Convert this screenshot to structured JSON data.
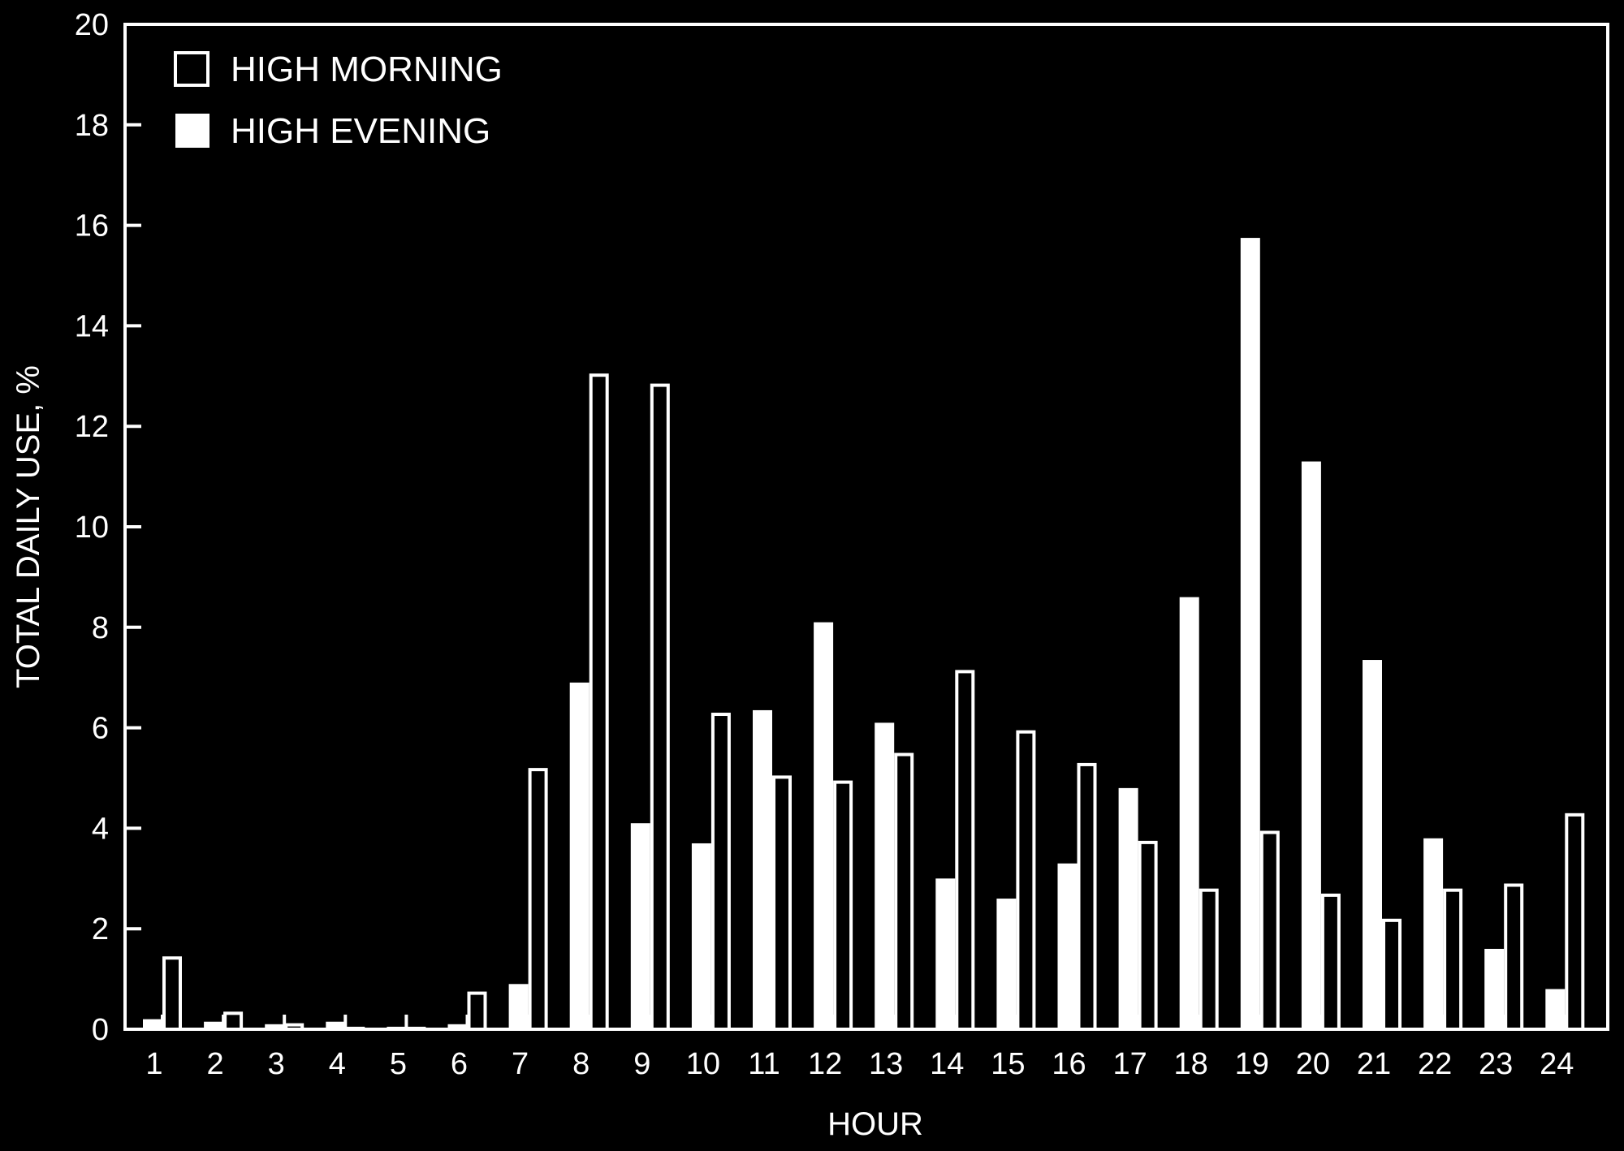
{
  "chart_data": {
    "type": "bar",
    "title": "",
    "xlabel": "HOUR",
    "ylabel": "TOTAL DAILY USE, %",
    "ylim": [
      0,
      20
    ],
    "yticks": [
      "0",
      "2",
      "4",
      "6",
      "8",
      "10",
      "12",
      "14",
      "16",
      "18",
      "20"
    ],
    "categories": [
      "1",
      "2",
      "3",
      "4",
      "5",
      "6",
      "7",
      "8",
      "9",
      "10",
      "11",
      "12",
      "13",
      "14",
      "15",
      "16",
      "17",
      "18",
      "19",
      "20",
      "21",
      "22",
      "23",
      "24"
    ],
    "legend_position": "top-left",
    "grid": false,
    "series": [
      {
        "name": "HIGH EVENING",
        "style": "filled",
        "color": "#ffffff",
        "values": [
          0.2,
          0.15,
          0.1,
          0.15,
          0.05,
          0.1,
          0.9,
          6.9,
          4.1,
          3.7,
          6.35,
          8.1,
          6.1,
          3.0,
          2.6,
          3.3,
          4.8,
          8.6,
          15.75,
          11.3,
          7.35,
          3.8,
          1.6,
          0.8
        ]
      },
      {
        "name": "HIGH MORNING",
        "style": "outlined",
        "color": "#ffffff",
        "values": [
          1.45,
          0.35,
          0.12,
          0.05,
          0.05,
          0.75,
          5.2,
          13.05,
          12.85,
          6.3,
          5.05,
          4.95,
          5.5,
          7.15,
          5.95,
          5.3,
          3.75,
          2.8,
          3.95,
          2.7,
          2.2,
          2.8,
          2.9,
          4.3
        ]
      }
    ]
  }
}
